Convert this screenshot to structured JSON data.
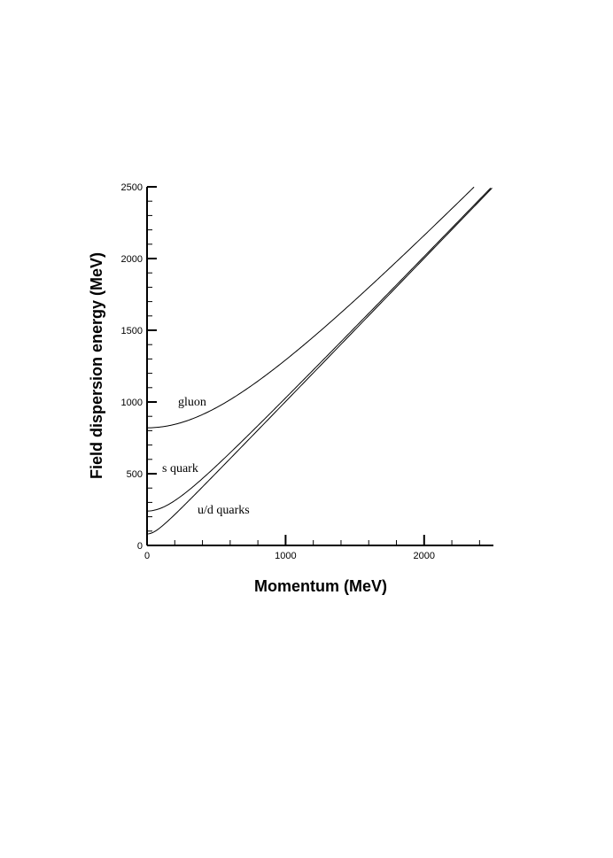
{
  "chart_data": {
    "type": "line",
    "xlabel": "Momentum (MeV)",
    "ylabel": "Field dispersion energy (MeV)",
    "xlim": [
      0,
      2500
    ],
    "ylim": [
      0,
      2500
    ],
    "x_ticks": [
      "0",
      "1000",
      "2000"
    ],
    "y_ticks": [
      "0",
      "500",
      "1000",
      "1500",
      "2000",
      "2500"
    ],
    "grid": false,
    "legend": "inline labels",
    "series": [
      {
        "name": "gluon",
        "mass_mev": 820,
        "x": [
          0,
          500,
          1000,
          1500,
          2000,
          2400
        ],
        "y": [
          820,
          960,
          1290,
          1710,
          2160,
          2533
        ]
      },
      {
        "name": "s quark",
        "mass_mev": 240,
        "x": [
          0,
          500,
          1000,
          1500,
          2000,
          2500
        ],
        "y": [
          240,
          555,
          1029,
          1519,
          2014,
          2512
        ]
      },
      {
        "name": "u/d quarks",
        "mass_mev": 80,
        "x": [
          0,
          500,
          1000,
          1500,
          2000,
          2500
        ],
        "y": [
          80,
          506,
          1003,
          1502,
          2002,
          2501
        ]
      }
    ]
  }
}
